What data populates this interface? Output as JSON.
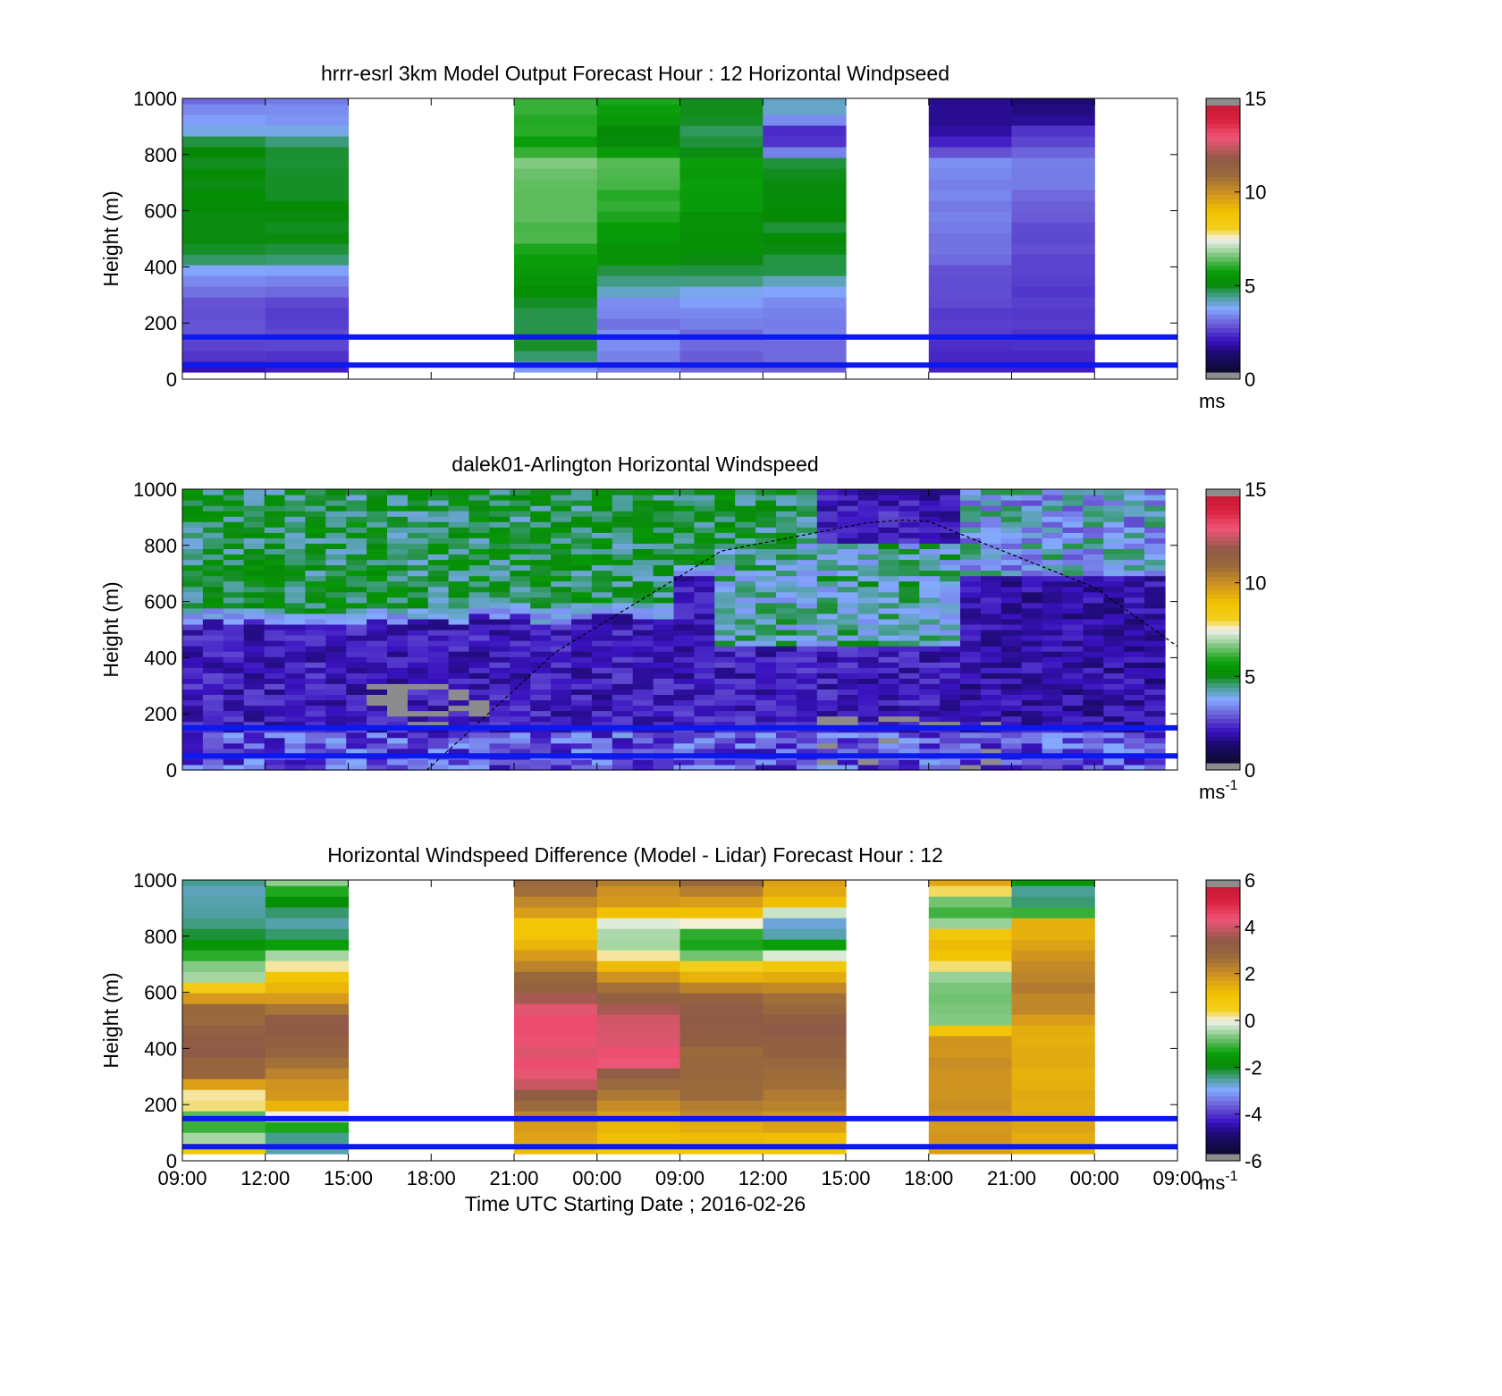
{
  "chart_data": [
    {
      "type": "heatmap",
      "title": "hrrr-esrl 3km Model Output   Forecast Hour : 12 Horizontal Windpseed",
      "ylabel": "Height (m)",
      "ylim": [
        0,
        1000
      ],
      "yticks": [
        "0",
        "200",
        "400",
        "600",
        "800",
        "1000"
      ],
      "x_ticks": [
        "",
        "",
        "",
        "",
        "",
        "",
        "",
        "",
        "",
        "",
        "",
        "",
        ""
      ],
      "colorbar": {
        "ticks": [
          "0",
          "5",
          "10",
          "15"
        ],
        "range": [
          0,
          15
        ],
        "unit": "ms",
        "unit_sup": ""
      },
      "reference_lines_m": [
        50,
        150
      ],
      "profiles": [
        {
          "slot": 0,
          "values": [
            1.8,
            2.3,
            2.7,
            2.5,
            2.6,
            3.0,
            3.4,
            4.7,
            4.8,
            5.0,
            4.9,
            5.0,
            5.0,
            4.8,
            4.9,
            3.8,
            3.3,
            2.8
          ]
        },
        {
          "slot": 1,
          "values": [
            1.9,
            2.3,
            2.4,
            2.4,
            2.3,
            3.1,
            3.4,
            4.7,
            4.8,
            4.8,
            4.9,
            4.9,
            4.8,
            4.7,
            4.8,
            3.6,
            3.4,
            3.1
          ]
        },
        {
          "slot": 4,
          "values": [
            3.4,
            4.8,
            4.7,
            4.6,
            4.8,
            5.2,
            5.4,
            5.7,
            6.1,
            6.2,
            6.3,
            6.3,
            6.4,
            6.6,
            5.5,
            5.9,
            6.0,
            6.1
          ]
        },
        {
          "slot": 5,
          "values": [
            3.1,
            3.2,
            3.2,
            3.0,
            3.3,
            4.2,
            4.7,
            5.2,
            5.4,
            5.7,
            6.0,
            6.0,
            6.1,
            6.2,
            4.8,
            4.9,
            5.8,
            5.9
          ]
        },
        {
          "slot": 6,
          "values": [
            2.9,
            2.8,
            2.9,
            3.1,
            3.4,
            3.9,
            4.7,
            5.0,
            5.2,
            5.2,
            5.4,
            5.5,
            5.6,
            5.5,
            4.6,
            4.5,
            4.9,
            4.9
          ]
        },
        {
          "slot": 7,
          "values": [
            2.8,
            2.9,
            3.1,
            3.0,
            3.2,
            3.8,
            4.5,
            4.8,
            4.9,
            4.8,
            4.9,
            4.8,
            4.8,
            4.7,
            2.2,
            2.0,
            4.0,
            4.0
          ]
        },
        {
          "slot": 9,
          "values": [
            1.9,
            2.1,
            2.3,
            2.3,
            2.4,
            2.6,
            2.6,
            2.8,
            2.9,
            3.0,
            3.1,
            3.2,
            3.2,
            3.3,
            2.0,
            1.5,
            1.4,
            1.4
          ]
        },
        {
          "slot": 10,
          "values": [
            1.9,
            2.1,
            2.2,
            2.3,
            2.3,
            2.4,
            2.4,
            2.5,
            2.5,
            2.6,
            2.7,
            3.0,
            3.0,
            3.0,
            2.5,
            2.1,
            1.2,
            1.0
          ]
        }
      ]
    },
    {
      "type": "heatmap",
      "title": "dalek01-Arlington  Horizontal Windspeed",
      "ylabel": "Height (m)",
      "ylim": [
        0,
        1000
      ],
      "yticks": [
        "0",
        "200",
        "400",
        "600",
        "800",
        "1000"
      ],
      "x_ticks": [
        "",
        "",
        "",
        "",
        "",
        "",
        "",
        "",
        "",
        "",
        "",
        "",
        ""
      ],
      "colorbar": {
        "ticks": [
          "0",
          "5",
          "10",
          "15"
        ],
        "range": [
          0,
          15
        ],
        "unit": "ms",
        "unit_sup": "-1"
      },
      "reference_lines_m": [
        50,
        150
      ],
      "columns": 48,
      "mixing_layer_curve": [
        [
          2.95,
          0
        ],
        [
          4.5,
          420
        ],
        [
          6.5,
          780
        ],
        [
          8.25,
          880
        ],
        [
          8.7,
          890
        ],
        [
          9.0,
          885
        ],
        [
          11.0,
          650
        ],
        [
          12.0,
          440
        ]
      ]
    },
    {
      "type": "heatmap",
      "title": "Horizontal Windspeed Difference (Model - Lidar) Forecast Hour : 12",
      "ylabel": "Height (m)",
      "xlabel": "Time UTC  Starting Date ; 2016-02-26",
      "ylim": [
        0,
        1000
      ],
      "yticks": [
        "0",
        "200",
        "400",
        "600",
        "800",
        "1000"
      ],
      "x_ticks": [
        "09:00",
        "12:00",
        "15:00",
        "18:00",
        "21:00",
        "00:00",
        "09:00",
        "12:00",
        "15:00",
        "18:00",
        "21:00",
        "00:00",
        "09:00"
      ],
      "colorbar": {
        "ticks": [
          "-6",
          "-4",
          "-2",
          "0",
          "2",
          "4",
          "6"
        ],
        "range": [
          -6,
          6
        ],
        "unit": "ms",
        "unit_sup": "-1"
      },
      "reference_lines_m": [
        50,
        150
      ],
      "profiles": [
        {
          "slot": 0,
          "values": [
            1.0,
            -1.0,
            -1.5,
            0.4,
            0.2,
            3.0,
            3.0,
            3.6,
            3.4,
            3.1,
            3.0,
            1.2,
            -0.3,
            -0.8,
            -1.4,
            -2.0,
            -2.6,
            -2.7,
            -2.8,
            -2.6
          ]
        },
        {
          "slot": 1,
          "values": [
            -2.8,
            -2.6,
            -0.4,
            1.4,
            2.0,
            2.3,
            2.7,
            3.2,
            3.5,
            3.7,
            2.5,
            1.5,
            1.4,
            0.0,
            -0.6,
            -2.5,
            -2.7,
            -2.3,
            -1.4,
            -0.6
          ]
        },
        {
          "slot": 4,
          "values": [
            1.2,
            1.8,
            2.2,
            2.9,
            3.6,
            4.5,
            4.6,
            4.3,
            4.7,
            4.6,
            4.5,
            3.6,
            3.0,
            2.4,
            1.8,
            1.1,
            1.2,
            2.1,
            2.6,
            3.0
          ]
        },
        {
          "slot": 5,
          "values": [
            1.0,
            1.4,
            1.6,
            2.2,
            2.6,
            3.0,
            4.4,
            4.6,
            4.3,
            4.2,
            3.8,
            3.0,
            2.2,
            1.3,
            -0.5,
            -0.7,
            0.0,
            1.6,
            2.1,
            2.5
          ]
        },
        {
          "slot": 6,
          "values": [
            1.0,
            1.3,
            2.0,
            2.6,
            2.9,
            3.0,
            3.1,
            3.0,
            3.6,
            3.5,
            3.6,
            2.9,
            1.8,
            0.4,
            -1.2,
            -1.6,
            0.2,
            1.7,
            2.2,
            3.0
          ]
        },
        {
          "slot": 7,
          "values": [
            1.1,
            1.4,
            2.1,
            2.3,
            2.7,
            2.8,
            3.0,
            3.3,
            3.6,
            3.5,
            3.0,
            2.6,
            1.7,
            0.8,
            -0.6,
            -2.7,
            -2.8,
            0.8,
            1.7,
            1.9
          ]
        },
        {
          "slot": 9,
          "values": [
            1.9,
            2.0,
            2.0,
            2.1,
            2.0,
            2.0,
            2.1,
            2.0,
            1.9,
            -0.6,
            -0.7,
            -0.8,
            -0.7,
            0.3,
            1.5,
            1.2,
            -0.5,
            -1.5,
            0.0,
            1.6
          ]
        },
        {
          "slot": 10,
          "values": [
            1.6,
            1.7,
            1.6,
            1.6,
            1.7,
            1.4,
            1.6,
            1.7,
            1.6,
            1.8,
            2.3,
            2.4,
            2.5,
            2.2,
            1.8,
            1.6,
            1.5,
            -2.3,
            -2.9,
            -1.8
          ]
        }
      ]
    }
  ]
}
